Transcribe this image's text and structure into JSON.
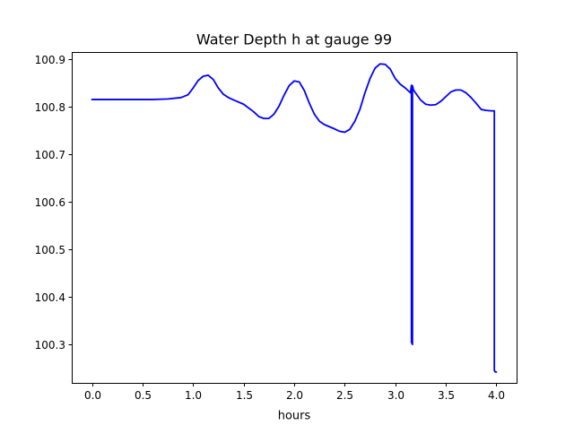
{
  "chart_data": {
    "type": "line",
    "title": "Water Depth h at gauge 99",
    "xlabel": "hours",
    "ylabel": "",
    "xlim": [
      -0.2,
      4.2
    ],
    "ylim": [
      100.219,
      100.916
    ],
    "xticks": [
      0.0,
      0.5,
      1.0,
      1.5,
      2.0,
      2.5,
      3.0,
      3.5,
      4.0
    ],
    "xtick_labels": [
      "0.0",
      "0.5",
      "1.0",
      "1.5",
      "2.0",
      "2.5",
      "3.0",
      "3.5",
      "4.0"
    ],
    "yticks": [
      100.3,
      100.4,
      100.5,
      100.6,
      100.7,
      100.8,
      100.9
    ],
    "ytick_labels": [
      "100.3",
      "100.4",
      "100.5",
      "100.6",
      "100.7",
      "100.8",
      "100.9"
    ],
    "grid": false,
    "series": [
      {
        "color": "#0000ff",
        "x": [
          0.0,
          0.2,
          0.4,
          0.6,
          0.75,
          0.88,
          0.95,
          1.0,
          1.05,
          1.1,
          1.15,
          1.2,
          1.25,
          1.3,
          1.35,
          1.4,
          1.5,
          1.6,
          1.65,
          1.7,
          1.75,
          1.8,
          1.85,
          1.9,
          1.95,
          2.0,
          2.05,
          2.1,
          2.15,
          2.2,
          2.25,
          2.3,
          2.4,
          2.45,
          2.5,
          2.55,
          2.6,
          2.65,
          2.7,
          2.75,
          2.8,
          2.85,
          2.9,
          2.95,
          3.0,
          3.05,
          3.1,
          3.15,
          3.16,
          3.16,
          3.17,
          3.17,
          3.18,
          3.25,
          3.3,
          3.35,
          3.4,
          3.45,
          3.5,
          3.55,
          3.6,
          3.65,
          3.7,
          3.75,
          3.8,
          3.85,
          3.9,
          3.95,
          3.98,
          3.98,
          3.99,
          4.0
        ],
        "y": [
          100.816,
          100.816,
          100.816,
          100.816,
          100.817,
          100.82,
          100.826,
          100.84,
          100.856,
          100.865,
          100.867,
          100.858,
          100.84,
          100.827,
          100.82,
          100.815,
          100.806,
          100.79,
          100.78,
          100.776,
          100.776,
          100.785,
          100.802,
          100.825,
          100.845,
          100.855,
          100.853,
          100.835,
          100.808,
          100.785,
          100.77,
          100.763,
          100.754,
          100.749,
          100.747,
          100.753,
          100.77,
          100.795,
          100.83,
          100.86,
          100.882,
          100.891,
          100.89,
          100.88,
          100.86,
          100.848,
          100.84,
          100.83,
          100.846,
          100.305,
          100.3,
          100.845,
          100.836,
          100.815,
          100.806,
          100.804,
          100.805,
          100.812,
          100.822,
          100.832,
          100.836,
          100.836,
          100.83,
          100.82,
          100.808,
          100.795,
          100.793,
          100.792,
          100.792,
          100.245,
          100.242,
          100.242
        ]
      }
    ]
  }
}
